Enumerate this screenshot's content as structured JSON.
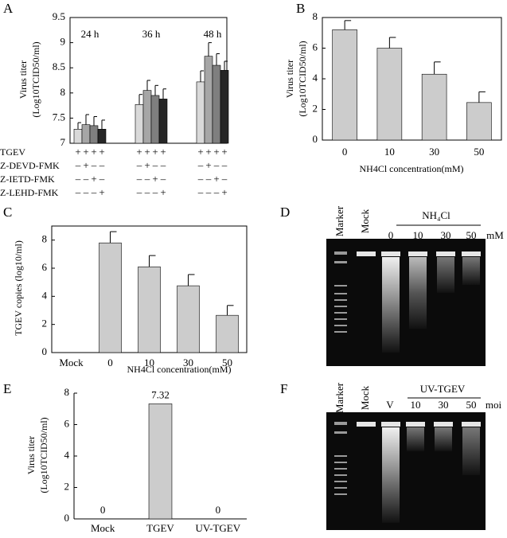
{
  "chart_data": [
    {
      "panel": "A",
      "type": "bar",
      "ylabel": [
        "Virus titer",
        "(Log10TCID50/ml)"
      ],
      "categories": [
        "24 h",
        "36 h",
        "48 h"
      ],
      "series": [
        {
          "color": "#d9d9d9",
          "values": [
            7.28,
            7.77,
            8.22
          ],
          "errors": [
            0.13,
            0.2,
            0.22
          ]
        },
        {
          "color": "#a6a6a6",
          "values": [
            7.37,
            8.05,
            8.73
          ],
          "errors": [
            0.2,
            0.2,
            0.27
          ]
        },
        {
          "color": "#7f7f7f",
          "values": [
            7.35,
            7.95,
            8.55
          ],
          "errors": [
            0.18,
            0.2,
            0.23
          ]
        },
        {
          "color": "#262626",
          "values": [
            7.28,
            7.88,
            8.45
          ],
          "errors": [
            0.18,
            0.2,
            0.18
          ]
        }
      ],
      "treatment_table": [
        {
          "label": "TGEV",
          "signs": [
            "+",
            "+",
            "+",
            "+",
            "+",
            "+",
            "+",
            "+",
            "+",
            "+",
            "+",
            "+"
          ]
        },
        {
          "label": "Z-DEVD-FMK",
          "signs": [
            "–",
            "+",
            "–",
            "–",
            "–",
            "+",
            "–",
            "–",
            "–",
            "+",
            "–",
            "–"
          ]
        },
        {
          "label": "Z-IETD-FMK",
          "signs": [
            "–",
            "–",
            "+",
            "–",
            "–",
            "–",
            "+",
            "–",
            "–",
            "–",
            "+",
            "–"
          ]
        },
        {
          "label": "Z-LEHD-FMK",
          "signs": [
            "–",
            "–",
            "–",
            "+",
            "–",
            "–",
            "–",
            "+",
            "–",
            "–",
            "–",
            "+"
          ]
        }
      ],
      "ylim": [
        7,
        9.5
      ],
      "yticks": [
        7,
        7.5,
        8,
        8.5,
        9,
        9.5
      ]
    },
    {
      "panel": "B",
      "type": "bar",
      "ylabel": [
        "Virus titer",
        "(Log10TCID50/ml)"
      ],
      "xlabel": "NH4Cl concentration(mM)",
      "categories": [
        "0",
        "10",
        "30",
        "50"
      ],
      "values": [
        7.2,
        6.0,
        4.3,
        2.45
      ],
      "errors": [
        0.6,
        0.7,
        0.8,
        0.7
      ],
      "color": "#cccccc",
      "ylim": [
        0,
        8
      ],
      "yticks": [
        0,
        2,
        4,
        6,
        8
      ]
    },
    {
      "panel": "C",
      "type": "bar",
      "ylabel": [
        "TGEV copies (log10/ml)"
      ],
      "xlabel": "NH4Cl concentration(mM)",
      "categories": [
        "Mock",
        "0",
        "10",
        "30",
        "50"
      ],
      "values": [
        null,
        7.8,
        6.1,
        4.75,
        2.65
      ],
      "errors": [
        null,
        0.8,
        0.8,
        0.8,
        0.7
      ],
      "color": "#cccccc",
      "ylim": [
        0,
        9
      ],
      "yticks": [
        0,
        2,
        4,
        6,
        8
      ]
    },
    {
      "panel": "E",
      "type": "bar",
      "ylabel": [
        "Virus titer",
        "(Log10TCID50/ml)"
      ],
      "categories": [
        "Mock",
        "TGEV",
        "UV-TGEV"
      ],
      "values": [
        0,
        7.32,
        0
      ],
      "value_labels": [
        "0",
        "7.32",
        "0"
      ],
      "color": "#cccccc",
      "ylim": [
        0,
        8
      ],
      "yticks": [
        0,
        2,
        4,
        6,
        8
      ]
    }
  ],
  "gels": [
    {
      "panel": "D",
      "lane_labels": [
        "Marker",
        "Mock"
      ],
      "group_label": "NH₄Cl",
      "group_lane_labels": [
        "0",
        "10",
        "30",
        "50"
      ],
      "unit": "mM"
    },
    {
      "panel": "F",
      "lane_labels": [
        "Marker",
        "Mock",
        "V"
      ],
      "group_label": "UV-TGEV",
      "group_lane_labels": [
        "10",
        "30",
        "50"
      ],
      "unit": "moi"
    }
  ]
}
